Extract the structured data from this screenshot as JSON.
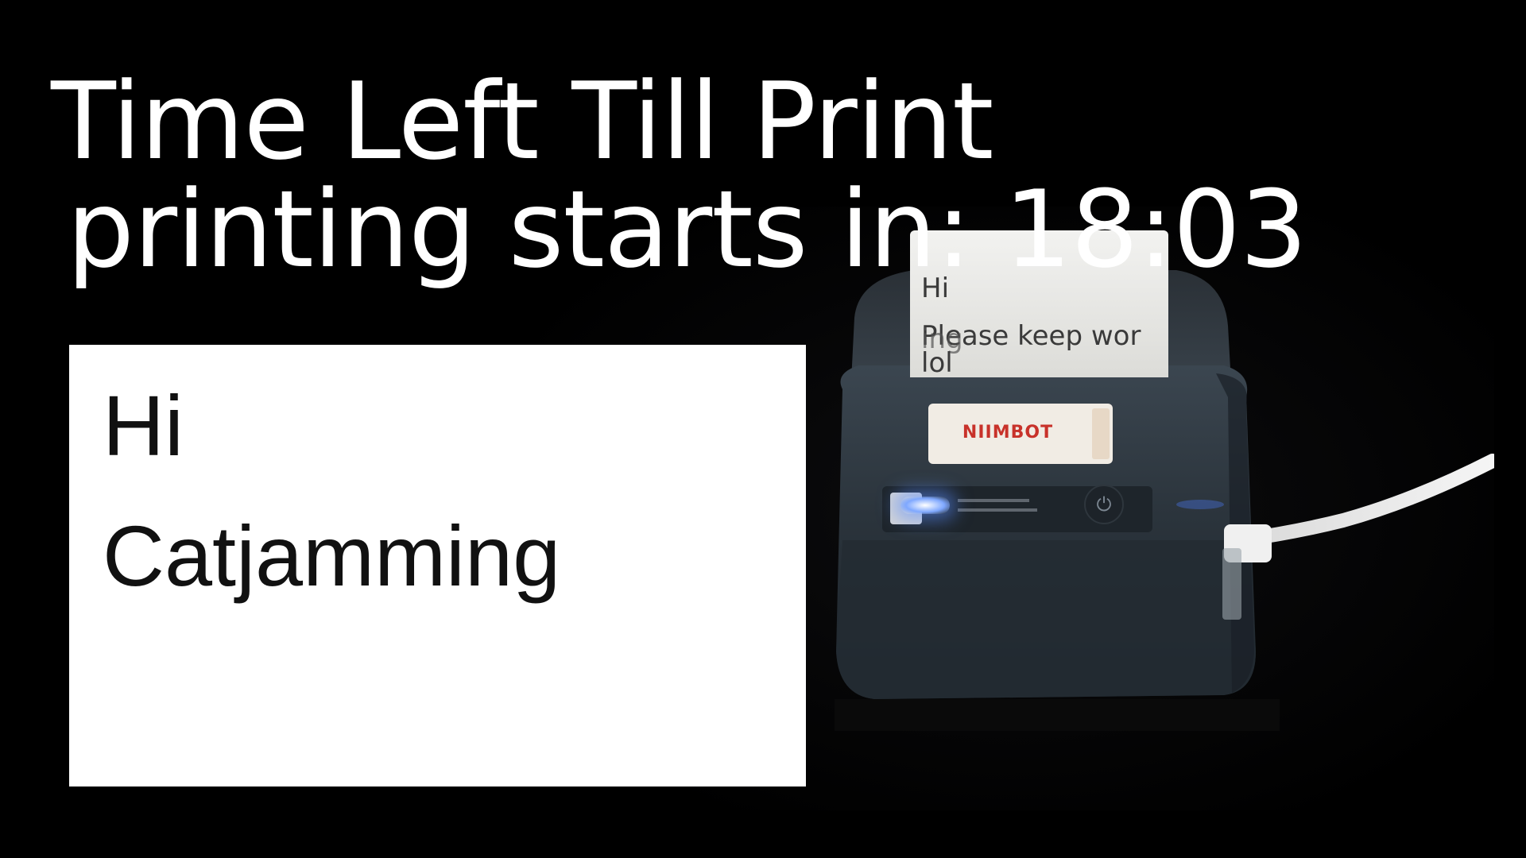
{
  "overlay": {
    "title": "Time Left Till Print",
    "countdown": "printing starts in: 18:03"
  },
  "label_preview": {
    "line1": "Hi",
    "line2": "Catjamming"
  },
  "camera_feed": {
    "printed_paper": {
      "line1": "Hi",
      "line2": "Please keep wor",
      "line2_overprint": "ing",
      "line3": "lol"
    },
    "printer_brand": "NIIMBOT",
    "power_icon": "power-icon",
    "status_light_color": "#7fa8ff"
  },
  "colors": {
    "background": "#000000",
    "overlay_text": "#ffffff",
    "label_background": "#ffffff",
    "label_text": "#111111",
    "brand_red": "#c8322a"
  }
}
